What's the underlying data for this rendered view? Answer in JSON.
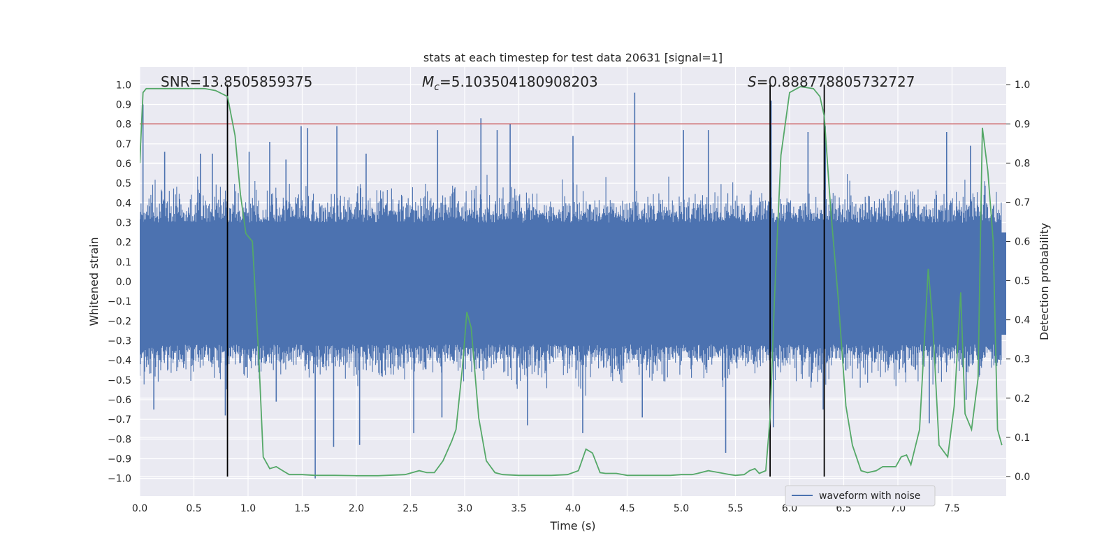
{
  "chart_data": {
    "type": "line",
    "title": "stats at each timestep for test data 20631 [signal=1]",
    "xlabel": "Time (s)",
    "ylabel": "Whitened strain",
    "y2label": "Detection probability",
    "xlim": [
      0.0,
      8.0
    ],
    "ylim": [
      -1.09,
      1.09
    ],
    "y2lim": [
      -0.05,
      1.045
    ],
    "xticks": [
      "0.0",
      "0.5",
      "1.0",
      "1.5",
      "2.0",
      "2.5",
      "3.0",
      "3.5",
      "4.0",
      "4.5",
      "5.0",
      "5.5",
      "6.0",
      "6.5",
      "7.0",
      "7.5"
    ],
    "yticks": [
      "1.0",
      "0.9",
      "0.8",
      "0.7",
      "0.6",
      "0.5",
      "0.4",
      "0.3",
      "0.2",
      "0.1",
      "0.0",
      "-0.1",
      "-0.2",
      "-0.3",
      "-0.4",
      "-0.5",
      "-0.6",
      "-0.7",
      "-0.8",
      "-0.9",
      "-1.0"
    ],
    "y2ticks": [
      "1.0",
      "0.9",
      "0.8",
      "0.7",
      "0.6",
      "0.5",
      "0.4",
      "0.3",
      "0.2",
      "0.1",
      "0.0"
    ],
    "grid": true,
    "legend_location": "lower-right",
    "annotations": {
      "snr": "SNR=13.8505859375",
      "mc_prefix": "M",
      "mc_sub": "c",
      "mc_value": "=5.103504180908203",
      "s_prefix": "S",
      "s_value": "=0.888778805732727"
    },
    "threshold": 0.9,
    "vertical_markers": [
      0.81,
      5.82,
      6.32
    ],
    "series": [
      {
        "name": "waveform with noise",
        "color": "#4c72b0",
        "axis": "left",
        "envelope_typical": [
          -0.42,
          0.4
        ],
        "spikes": [
          {
            "x": 0.03,
            "y": 0.9
          },
          {
            "x": 0.23,
            "y": 0.66
          },
          {
            "x": 0.56,
            "y": 0.65
          },
          {
            "x": 0.67,
            "y": 0.65
          },
          {
            "x": 0.81,
            "y": 0.92
          },
          {
            "x": 1.01,
            "y": 0.66
          },
          {
            "x": 1.2,
            "y": 0.71
          },
          {
            "x": 1.35,
            "y": 0.62
          },
          {
            "x": 1.49,
            "y": 0.79
          },
          {
            "x": 1.55,
            "y": 0.78
          },
          {
            "x": 1.82,
            "y": 0.79
          },
          {
            "x": 2.09,
            "y": 0.65
          },
          {
            "x": 2.75,
            "y": 0.77
          },
          {
            "x": 3.15,
            "y": 0.83
          },
          {
            "x": 3.3,
            "y": 0.77
          },
          {
            "x": 3.42,
            "y": 0.8
          },
          {
            "x": 4.0,
            "y": 0.74
          },
          {
            "x": 4.57,
            "y": 0.96
          },
          {
            "x": 5.02,
            "y": 0.77
          },
          {
            "x": 5.25,
            "y": 0.77
          },
          {
            "x": 5.83,
            "y": 0.92
          },
          {
            "x": 6.17,
            "y": 0.76
          },
          {
            "x": 6.33,
            "y": 0.79
          },
          {
            "x": 7.45,
            "y": 0.76
          },
          {
            "x": 7.67,
            "y": 0.69
          },
          {
            "x": 0.13,
            "y": -0.65
          },
          {
            "x": 0.79,
            "y": -0.68
          },
          {
            "x": 1.26,
            "y": -0.61
          },
          {
            "x": 1.62,
            "y": -1.0
          },
          {
            "x": 1.79,
            "y": -0.84
          },
          {
            "x": 2.03,
            "y": -0.83
          },
          {
            "x": 2.53,
            "y": -0.77
          },
          {
            "x": 2.79,
            "y": -0.69
          },
          {
            "x": 3.58,
            "y": -0.73
          },
          {
            "x": 4.09,
            "y": -0.77
          },
          {
            "x": 4.64,
            "y": -0.69
          },
          {
            "x": 5.41,
            "y": -0.87
          },
          {
            "x": 5.85,
            "y": -0.74
          },
          {
            "x": 6.31,
            "y": -0.65
          },
          {
            "x": 7.29,
            "y": -0.72
          },
          {
            "x": 7.63,
            "y": -0.6
          }
        ]
      },
      {
        "name": "Detection probability",
        "color": "#55a868",
        "axis": "right",
        "x": [
          0.0,
          0.03,
          0.06,
          0.12,
          0.25,
          0.45,
          0.6,
          0.7,
          0.81,
          0.88,
          0.93,
          0.98,
          1.04,
          1.1,
          1.14,
          1.2,
          1.26,
          1.32,
          1.38,
          1.5,
          1.62,
          1.8,
          2.0,
          2.2,
          2.45,
          2.58,
          2.65,
          2.72,
          2.8,
          2.88,
          2.92,
          2.98,
          3.02,
          3.06,
          3.13,
          3.2,
          3.28,
          3.35,
          3.5,
          3.8,
          3.95,
          4.05,
          4.12,
          4.18,
          4.25,
          4.3,
          4.4,
          4.5,
          4.7,
          4.9,
          5.0,
          5.1,
          5.15,
          5.25,
          5.35,
          5.45,
          5.5,
          5.58,
          5.63,
          5.68,
          5.72,
          5.78,
          5.82,
          5.86,
          5.92,
          6.0,
          6.1,
          6.22,
          6.28,
          6.32,
          6.38,
          6.45,
          6.52,
          6.58,
          6.66,
          6.72,
          6.8,
          6.86,
          6.92,
          6.98,
          7.03,
          7.08,
          7.12,
          7.2,
          7.28,
          7.32,
          7.38,
          7.46,
          7.52,
          7.58,
          7.62,
          7.68,
          7.74,
          7.78,
          7.83,
          7.88,
          7.92,
          7.96
        ],
        "values": [
          0.8,
          0.98,
          0.99,
          0.99,
          0.99,
          0.99,
          0.99,
          0.985,
          0.97,
          0.87,
          0.72,
          0.62,
          0.6,
          0.3,
          0.05,
          0.02,
          0.025,
          0.015,
          0.005,
          0.005,
          0.003,
          0.003,
          0.002,
          0.002,
          0.005,
          0.015,
          0.01,
          0.01,
          0.04,
          0.09,
          0.12,
          0.28,
          0.42,
          0.38,
          0.15,
          0.04,
          0.01,
          0.005,
          0.003,
          0.003,
          0.005,
          0.015,
          0.07,
          0.06,
          0.01,
          0.008,
          0.008,
          0.003,
          0.003,
          0.003,
          0.005,
          0.005,
          0.008,
          0.015,
          0.01,
          0.005,
          0.003,
          0.005,
          0.015,
          0.02,
          0.008,
          0.015,
          0.15,
          0.45,
          0.82,
          0.98,
          0.995,
          0.99,
          0.97,
          0.92,
          0.68,
          0.45,
          0.18,
          0.08,
          0.015,
          0.01,
          0.015,
          0.025,
          0.025,
          0.025,
          0.05,
          0.055,
          0.03,
          0.12,
          0.53,
          0.4,
          0.08,
          0.05,
          0.18,
          0.47,
          0.16,
          0.12,
          0.25,
          0.89,
          0.78,
          0.6,
          0.12,
          0.08
        ]
      }
    ]
  }
}
